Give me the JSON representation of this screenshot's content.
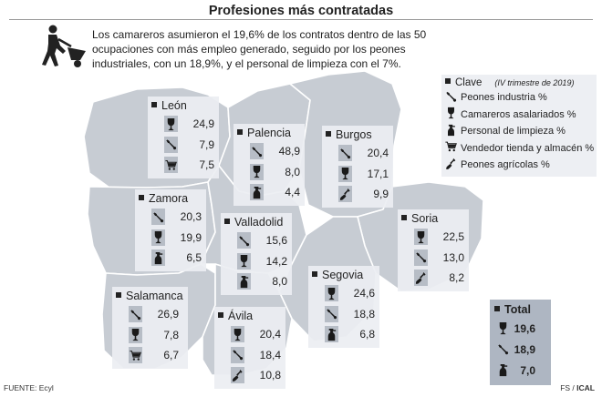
{
  "title": "Profesiones más contratadas",
  "intro": "Los camareros asumieron el 19,6% de los contratos dentro de las 50 ocupaciones con más empleo generado, seguido por los peones industriales, con un 18,9%, y el personal de limpieza con el 7%.",
  "legend": {
    "title": "Clave",
    "period": "(IV trimestre de 2019)",
    "items": [
      {
        "icon": "wrench-icon",
        "label": "Peones industria %"
      },
      {
        "icon": "wine-glass-icon",
        "label": "Camareros asalariados %"
      },
      {
        "icon": "spray-bottle-icon",
        "label": "Personal de limpieza %"
      },
      {
        "icon": "shopping-cart-icon",
        "label": "Vendedor tienda y almacén %"
      },
      {
        "icon": "shovel-icon",
        "label": "Peones agrícolas %"
      }
    ]
  },
  "provinces": {
    "leon": {
      "name": "León",
      "rows": [
        {
          "icon": "wine-glass-icon",
          "value": "24,9"
        },
        {
          "icon": "wrench-icon",
          "value": "7,9"
        },
        {
          "icon": "shopping-cart-icon",
          "value": "7,5"
        }
      ]
    },
    "palencia": {
      "name": "Palencia",
      "rows": [
        {
          "icon": "wrench-icon",
          "value": "48,9"
        },
        {
          "icon": "wine-glass-icon",
          "value": "8,0"
        },
        {
          "icon": "spray-bottle-icon",
          "value": "4,4"
        }
      ]
    },
    "burgos": {
      "name": "Burgos",
      "rows": [
        {
          "icon": "wrench-icon",
          "value": "20,4"
        },
        {
          "icon": "wine-glass-icon",
          "value": "17,1"
        },
        {
          "icon": "shovel-icon",
          "value": "9,9"
        }
      ]
    },
    "zamora": {
      "name": "Zamora",
      "rows": [
        {
          "icon": "wrench-icon",
          "value": "20,3"
        },
        {
          "icon": "wine-glass-icon",
          "value": "19,9"
        },
        {
          "icon": "spray-bottle-icon",
          "value": "6,5"
        }
      ]
    },
    "valladolid": {
      "name": "Valladolid",
      "rows": [
        {
          "icon": "wrench-icon",
          "value": "15,6"
        },
        {
          "icon": "wine-glass-icon",
          "value": "14,2"
        },
        {
          "icon": "spray-bottle-icon",
          "value": "8,0"
        }
      ]
    },
    "soria": {
      "name": "Soria",
      "rows": [
        {
          "icon": "wine-glass-icon",
          "value": "22,5"
        },
        {
          "icon": "wrench-icon",
          "value": "13,0"
        },
        {
          "icon": "shovel-icon",
          "value": "8,2"
        }
      ]
    },
    "segovia": {
      "name": "Segovia",
      "rows": [
        {
          "icon": "wine-glass-icon",
          "value": "24,6"
        },
        {
          "icon": "wrench-icon",
          "value": "18,8"
        },
        {
          "icon": "spray-bottle-icon",
          "value": "6,8"
        }
      ]
    },
    "salamanca": {
      "name": "Salamanca",
      "rows": [
        {
          "icon": "wrench-icon",
          "value": "26,9"
        },
        {
          "icon": "wine-glass-icon",
          "value": "7,8"
        },
        {
          "icon": "shopping-cart-icon",
          "value": "6,7"
        }
      ]
    },
    "avila": {
      "name": "Ávila",
      "rows": [
        {
          "icon": "wine-glass-icon",
          "value": "20,4"
        },
        {
          "icon": "wrench-icon",
          "value": "18,4"
        },
        {
          "icon": "shovel-icon",
          "value": "10,8"
        }
      ]
    }
  },
  "total": {
    "name": "Total",
    "rows": [
      {
        "icon": "wine-glass-icon",
        "value": "19,6"
      },
      {
        "icon": "wrench-icon",
        "value": "18,9"
      },
      {
        "icon": "spray-bottle-icon",
        "value": "7,0"
      }
    ]
  },
  "footer": {
    "source": "FUENTE: Ecyl",
    "credit_prefix": "FS / ",
    "credit_brand": "ICAL"
  },
  "colors": {
    "map_fill": "#c7ccd3",
    "map_border": "#ffffff",
    "panel_bg": "#eceef2",
    "icon_box": "#b7bdc6",
    "total_bg": "#aeb6c2"
  }
}
